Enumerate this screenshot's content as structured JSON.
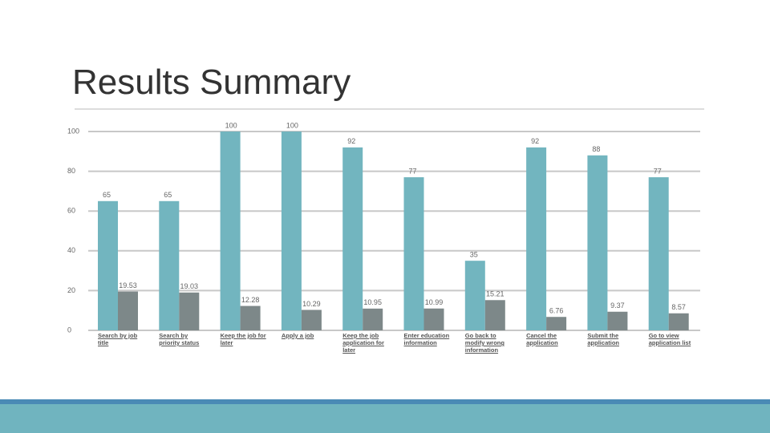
{
  "title": "Results Summary",
  "chart_data": {
    "type": "bar",
    "categories": [
      "Search by job title",
      "Search by priority status",
      "Keep the job for later",
      "Apply a job",
      "Keep the job application for later",
      "Enter education information",
      "Go back to modify wrong information",
      "Cancel the application",
      "Submit the application",
      "Go to view application list"
    ],
    "series": [
      {
        "color": "#72b5bf",
        "values": [
          65,
          65,
          100,
          100,
          92,
          77,
          35,
          92,
          88,
          77
        ]
      },
      {
        "color": "#7d8889",
        "values": [
          19.53,
          19.03,
          12.28,
          10.29,
          10.95,
          10.99,
          15.21,
          6.76,
          9.37,
          8.57
        ]
      }
    ],
    "ylim": [
      0,
      100
    ],
    "yticks": [
      0,
      20,
      40,
      60,
      80,
      100
    ],
    "grid": true
  }
}
